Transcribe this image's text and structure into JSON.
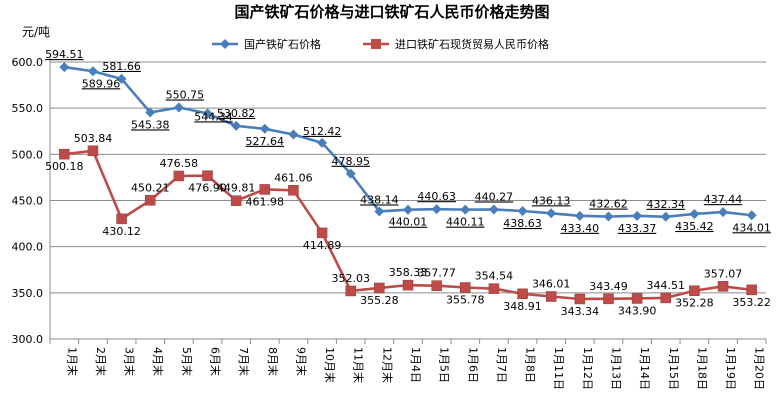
{
  "chart_data": {
    "type": "line",
    "title": "国产铁矿石价格与进口铁矿石人民币价格走势图",
    "ylabel": "元/吨",
    "xlabel": "",
    "ylim": [
      300,
      600
    ],
    "yticks": [
      "300.0",
      "350.0",
      "400.0",
      "450.0",
      "500.0",
      "550.0",
      "600.0"
    ],
    "grid": "horizontal",
    "legend_position": "top",
    "categories": [
      "1月末",
      "2月末",
      "3月末",
      "4月末",
      "5月末",
      "6月末",
      "7月末",
      "8月末",
      "9月末",
      "10月末",
      "11月末",
      "12月末",
      "1月4日",
      "1月5日",
      "1月6日",
      "1月7日",
      "1月8日",
      "1月11日",
      "1月12日",
      "1月13日",
      "1月14日",
      "1月15日",
      "1月18日",
      "1月19日",
      "1月20日"
    ],
    "series": [
      {
        "name": "国产铁矿石价格",
        "color": "#4a7ebb",
        "marker": "diamond",
        "values": [
          594.51,
          589.96,
          581.66,
          545.38,
          550.75,
          544.34,
          530.82,
          527.64,
          521.5,
          512.42,
          478.95,
          438.14,
          440.01,
          440.63,
          440.11,
          440.27,
          438.63,
          436.13,
          433.4,
          432.62,
          433.37,
          432.34,
          435.42,
          437.44,
          434.01
        ],
        "labels": [
          "594.51",
          "589.96",
          "581.66",
          "545.38",
          "550.75",
          "544.34",
          "530.82",
          "527.64",
          "",
          "512.42",
          "478.95",
          "438.14",
          "440.01",
          "440.63",
          "440.11",
          "440.27",
          "438.63",
          "436.13",
          "433.40",
          "432.62",
          "433.37",
          "432.34",
          "435.42",
          "437.44",
          "434.01"
        ]
      },
      {
        "name": "进口铁矿石现货贸易人民币价格",
        "color": "#be4b48",
        "marker": "square",
        "values": [
          500.18,
          503.84,
          430.12,
          450.21,
          476.58,
          476.9,
          449.81,
          461.98,
          461.06,
          414.89,
          352.03,
          355.28,
          358.33,
          357.77,
          355.78,
          354.54,
          348.91,
          346.01,
          343.34,
          343.49,
          343.9,
          344.51,
          352.28,
          357.07,
          353.22
        ],
        "labels": [
          "500.18",
          "503.84",
          "430.12",
          "450.21",
          "476.58",
          "476.90",
          "449.81",
          "461.98",
          "461.06",
          "414.89",
          "352.03",
          "355.28",
          "358.33",
          "357.77",
          "355.78",
          "354.54",
          "348.91",
          "346.01",
          "343.34",
          "343.49",
          "343.90",
          "344.51",
          "352.28",
          "357.07",
          "353.22"
        ]
      }
    ]
  }
}
